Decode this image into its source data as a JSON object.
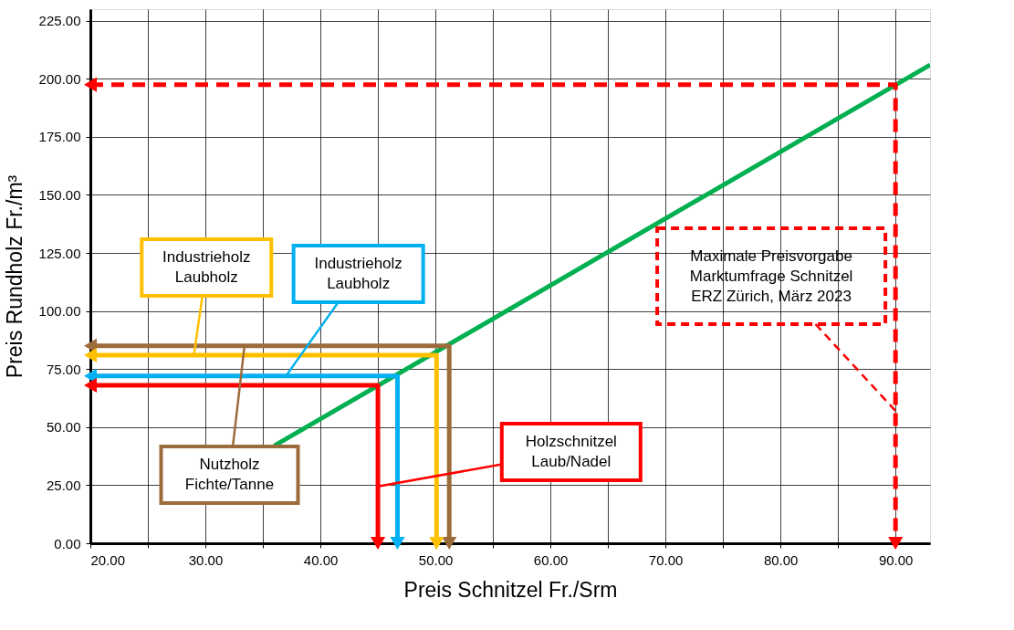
{
  "chart_data": {
    "type": "line",
    "xlabel": "Preis Schnitzel Fr./Srm",
    "ylabel": "Preis Rundholz Fr./m³",
    "xlim": [
      20,
      93
    ],
    "ylim": [
      0,
      230
    ],
    "xticks": [
      {
        "value": 20,
        "label": "20.00"
      },
      {
        "value": 25,
        "label": null
      },
      {
        "value": 30,
        "label": "30.00"
      },
      {
        "value": 35,
        "label": null
      },
      {
        "value": 40,
        "label": "40.00"
      },
      {
        "value": 45,
        "label": null
      },
      {
        "value": 50,
        "label": "50.00"
      },
      {
        "value": 55,
        "label": null
      },
      {
        "value": 60,
        "label": "60.00"
      },
      {
        "value": 65,
        "label": null
      },
      {
        "value": 70,
        "label": "70.00"
      },
      {
        "value": 75,
        "label": null
      },
      {
        "value": 80,
        "label": "80.00"
      },
      {
        "value": 85,
        "label": null
      },
      {
        "value": 90,
        "label": "90.00"
      }
    ],
    "yticks": [
      {
        "value": 0,
        "label": "0.00"
      },
      {
        "value": 25,
        "label": "25.00"
      },
      {
        "value": 50,
        "label": "50.00"
      },
      {
        "value": 75,
        "label": "75.00"
      },
      {
        "value": 100,
        "label": "100.00"
      },
      {
        "value": 125,
        "label": "125.00"
      },
      {
        "value": 150,
        "label": "150.00"
      },
      {
        "value": 175,
        "label": "175.00"
      },
      {
        "value": 200,
        "label": "200.00"
      },
      {
        "value": 225,
        "label": "225.00"
      }
    ],
    "grid": true,
    "line_style": "solid",
    "series": [
      {
        "color": "#00b050",
        "x": [
          36,
          93
        ],
        "values": [
          42,
          206
        ]
      },
      {
        "color": "#9c6b3c",
        "x": [
          20,
          51.2,
          51.2
        ],
        "values": [
          85,
          85,
          0
        ]
      },
      {
        "color": "#ffc000",
        "x": [
          20,
          50.1,
          50.1
        ],
        "values": [
          81,
          81,
          0
        ]
      },
      {
        "color": "#00b0f0",
        "x": [
          20,
          46.7,
          46.7
        ],
        "values": [
          72,
          72,
          0
        ]
      },
      {
        "color": "#ff0000",
        "x": [
          20,
          45.0,
          45.0
        ],
        "values": [
          68,
          68,
          0
        ]
      },
      {
        "color": "#ff0000",
        "line_style": "dashed",
        "x": [
          20,
          90,
          90
        ],
        "values": [
          197.5,
          197.5,
          0
        ]
      }
    ],
    "annotations": [
      {
        "text": "Industrieholz\nLaubholz",
        "x": 29,
        "y": 81
      },
      {
        "text": "Industrieholz\nLaubholz",
        "x": 37,
        "y": 72
      },
      {
        "text": "Nutzholz\nFichte/Tanne",
        "x": 33.4,
        "y": 85
      },
      {
        "text": "Holzschnitzel\nLaub/Nadel",
        "x": 45,
        "y": 24.5
      },
      {
        "text": "Maximale Preisvorgabe\nMarktumfrage Schnitzel\nERZ Zürich, März 2023",
        "x": 90,
        "y": 57
      }
    ]
  }
}
